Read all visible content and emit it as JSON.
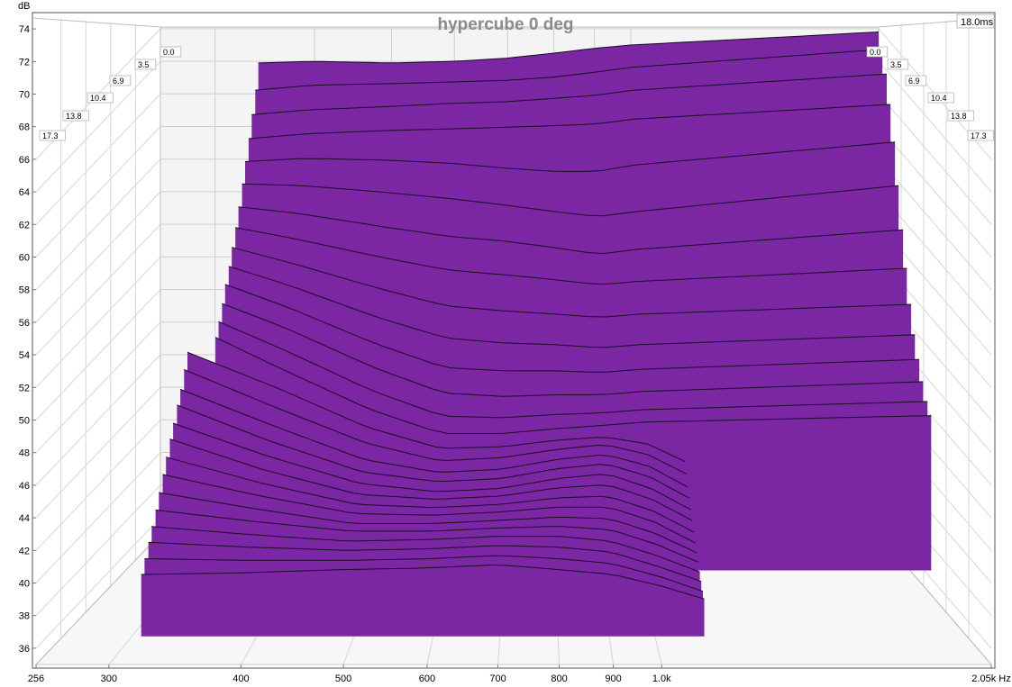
{
  "chart_data": {
    "type": "waterfall-3d",
    "title": "hypercube 0 deg",
    "y_unit_label": "dB",
    "x_unit_label": "Hz",
    "ylim": [
      35,
      75
    ],
    "y_ticks": [
      "74",
      "72",
      "70",
      "68",
      "66",
      "64",
      "62",
      "60",
      "58",
      "56",
      "54",
      "52",
      "50",
      "48",
      "46",
      "44",
      "42",
      "40",
      "38",
      "36"
    ],
    "x_scale": "log",
    "xlim": [
      256,
      2050
    ],
    "x_ticks": [
      {
        "value": 256,
        "label": "256"
      },
      {
        "value": 300,
        "label": "300"
      },
      {
        "value": 400,
        "label": "400"
      },
      {
        "value": 500,
        "label": "500"
      },
      {
        "value": 600,
        "label": "600"
      },
      {
        "value": 700,
        "label": "700"
      },
      {
        "value": 800,
        "label": "800"
      },
      {
        "value": 900,
        "label": "900"
      },
      {
        "value": 1000,
        "label": "1.0k"
      },
      {
        "value": 2050,
        "label": "2.05k Hz"
      }
    ],
    "time_unit": "ms",
    "time_max_label": "18.0ms",
    "time_labels_left": [
      "0.0",
      "3.5",
      "6.9",
      "10.4",
      "13.8",
      "17.3"
    ],
    "time_labels_right": [
      "0.0",
      "3.5",
      "6.9",
      "10.4",
      "13.8",
      "17.3"
    ],
    "fill_color": "#7b27a3",
    "grid": true,
    "slices": [
      {
        "t": 0.0,
        "f": [
          340,
          400,
          500,
          600,
          700,
          800,
          900,
          1000,
          2050
        ],
        "db": [
          63.9,
          64.0,
          63.9,
          64.0,
          64.2,
          64.5,
          64.8,
          65.0,
          65.8
        ]
      },
      {
        "t": 0.6,
        "f": [
          340,
          400,
          500,
          600,
          700,
          800,
          900,
          1000,
          2050
        ],
        "db": [
          62.5,
          62.8,
          62.9,
          63.0,
          63.1,
          63.3,
          63.6,
          63.9,
          65.0
        ]
      },
      {
        "t": 1.3,
        "f": [
          340,
          400,
          500,
          600,
          700,
          800,
          900,
          1000,
          2050
        ],
        "db": [
          61.3,
          61.6,
          61.8,
          62.0,
          62.1,
          62.3,
          62.5,
          62.8,
          63.8
        ]
      },
      {
        "t": 1.9,
        "f": [
          340,
          400,
          500,
          600,
          700,
          800,
          900,
          1000,
          2050
        ],
        "db": [
          60.1,
          60.4,
          60.6,
          60.7,
          60.8,
          60.9,
          61.0,
          61.3,
          62.2
        ]
      },
      {
        "t": 2.6,
        "f": [
          340,
          400,
          500,
          600,
          700,
          800,
          900,
          1000,
          2050
        ],
        "db": [
          59.0,
          59.2,
          59.1,
          58.9,
          58.6,
          58.4,
          58.4,
          58.8,
          60.2
        ]
      },
      {
        "t": 3.2,
        "f": [
          340,
          400,
          500,
          600,
          700,
          800,
          900,
          1000,
          2050
        ],
        "db": [
          57.9,
          57.8,
          57.4,
          57.0,
          56.6,
          56.2,
          55.9,
          56.2,
          57.8
        ]
      },
      {
        "t": 3.9,
        "f": [
          340,
          400,
          500,
          600,
          700,
          800,
          900,
          1000,
          2050
        ],
        "db": [
          56.8,
          56.4,
          55.6,
          55.0,
          54.7,
          54.3,
          53.9,
          54.2,
          55.4
        ]
      },
      {
        "t": 4.5,
        "f": [
          340,
          400,
          500,
          600,
          700,
          800,
          900,
          1000,
          2050
        ],
        "db": [
          55.8,
          55.1,
          54.0,
          53.2,
          52.9,
          52.6,
          52.3,
          52.5,
          53.3
        ]
      },
      {
        "t": 5.2,
        "f": [
          340,
          400,
          500,
          600,
          700,
          800,
          900,
          1000,
          2050
        ],
        "db": [
          54.9,
          53.9,
          52.4,
          51.3,
          51.0,
          50.8,
          50.6,
          50.8,
          51.4
        ]
      },
      {
        "t": 5.8,
        "f": [
          340,
          400,
          500,
          600,
          700,
          800,
          900,
          1000,
          2050
        ],
        "db": [
          54.0,
          52.8,
          50.9,
          49.6,
          49.3,
          49.2,
          49.0,
          49.2,
          49.8
        ]
      },
      {
        "t": 6.5,
        "f": [
          340,
          400,
          500,
          600,
          700,
          800,
          900,
          1000,
          2050
        ],
        "db": [
          53.2,
          51.8,
          49.6,
          48.1,
          47.9,
          47.9,
          47.8,
          48.0,
          48.6
        ]
      },
      {
        "t": 7.1,
        "f": [
          340,
          400,
          500,
          600,
          700,
          800,
          900,
          1000,
          2050
        ],
        "db": [
          52.3,
          50.8,
          48.4,
          46.8,
          46.6,
          46.7,
          46.7,
          46.9,
          47.5
        ]
      },
      {
        "t": 7.8,
        "f": [
          340,
          400,
          500,
          600,
          700,
          800,
          900,
          1000,
          2050
        ],
        "db": [
          51.5,
          49.8,
          47.3,
          45.7,
          45.6,
          45.8,
          45.9,
          46.1,
          46.6
        ]
      },
      {
        "t": 8.4,
        "f": [
          340,
          400,
          500,
          600,
          700,
          800,
          900,
          1000,
          2050
        ],
        "db": [
          50.8,
          48.9,
          46.4,
          44.9,
          44.9,
          45.2,
          45.4,
          45.6,
          46.0
        ]
      },
      {
        "t": 9.1,
        "f": [
          320,
          400,
          500,
          600,
          700,
          800,
          900,
          1000,
          1100
        ],
        "db": [
          50.2,
          48.0,
          45.6,
          44.3,
          44.4,
          44.8,
          45.0,
          44.6,
          43.5
        ]
      },
      {
        "t": 9.7,
        "f": [
          320,
          400,
          500,
          600,
          700,
          800,
          900,
          1000,
          1100
        ],
        "db": [
          49.4,
          47.1,
          44.9,
          43.8,
          44.0,
          44.5,
          44.8,
          44.2,
          43.0
        ]
      },
      {
        "t": 10.4,
        "f": [
          320,
          400,
          500,
          600,
          700,
          800,
          900,
          1000,
          1100
        ],
        "db": [
          48.5,
          46.3,
          44.2,
          43.4,
          43.6,
          44.2,
          44.5,
          43.8,
          42.5
        ]
      },
      {
        "t": 11.0,
        "f": [
          320,
          400,
          500,
          600,
          700,
          800,
          900,
          1000,
          1100
        ],
        "db": [
          47.8,
          45.6,
          43.7,
          43.1,
          43.3,
          43.9,
          44.2,
          43.4,
          42.1
        ]
      },
      {
        "t": 11.7,
        "f": [
          320,
          400,
          500,
          600,
          700,
          800,
          900,
          1000,
          1100
        ],
        "db": [
          47.0,
          45.0,
          43.3,
          42.8,
          43.0,
          43.6,
          43.9,
          43.0,
          41.7
        ]
      },
      {
        "t": 12.3,
        "f": [
          320,
          400,
          500,
          600,
          700,
          800,
          900,
          1000,
          1100
        ],
        "db": [
          46.3,
          44.4,
          42.9,
          42.6,
          42.8,
          43.3,
          43.5,
          42.6,
          41.3
        ]
      },
      {
        "t": 13.0,
        "f": [
          320,
          400,
          500,
          600,
          700,
          800,
          900,
          1000,
          1100
        ],
        "db": [
          45.5,
          43.9,
          42.6,
          42.4,
          42.6,
          43.0,
          43.1,
          42.2,
          40.9
        ]
      },
      {
        "t": 13.6,
        "f": [
          320,
          400,
          500,
          600,
          700,
          800,
          900,
          1000,
          1100
        ],
        "db": [
          44.7,
          43.4,
          42.3,
          42.2,
          42.4,
          42.7,
          42.7,
          41.8,
          40.5
        ]
      },
      {
        "t": 14.3,
        "f": [
          320,
          400,
          500,
          600,
          700,
          800,
          900,
          1000,
          1100
        ],
        "db": [
          43.9,
          42.9,
          42.0,
          42.0,
          42.2,
          42.4,
          42.3,
          41.4,
          40.2
        ]
      },
      {
        "t": 14.9,
        "f": [
          320,
          400,
          500,
          600,
          700,
          800,
          900,
          1000,
          1100
        ],
        "db": [
          43.1,
          42.4,
          41.8,
          41.8,
          42.0,
          42.1,
          41.9,
          41.0,
          39.9
        ]
      },
      {
        "t": 15.6,
        "f": [
          320,
          400,
          500,
          600,
          700,
          800,
          900,
          1000,
          1100
        ],
        "db": [
          42.4,
          41.9,
          41.5,
          41.6,
          41.8,
          41.8,
          41.5,
          40.6,
          39.6
        ]
      },
      {
        "t": 16.2,
        "f": [
          320,
          400,
          500,
          600,
          700,
          800,
          900,
          1000,
          1100
        ],
        "db": [
          41.7,
          41.4,
          41.2,
          41.3,
          41.5,
          41.4,
          41.1,
          40.2,
          39.3
        ]
      },
      {
        "t": 16.9,
        "f": [
          320,
          400,
          500,
          600,
          700,
          800,
          900,
          1000,
          1100
        ],
        "db": [
          41.0,
          40.9,
          40.9,
          41.0,
          41.2,
          41.0,
          40.7,
          39.9,
          39.0
        ]
      },
      {
        "t": 17.5,
        "f": [
          320,
          400,
          500,
          600,
          700,
          800,
          900,
          1000,
          1100
        ],
        "db": [
          40.3,
          40.4,
          40.6,
          40.7,
          40.9,
          40.6,
          40.3,
          39.6,
          38.8
        ]
      }
    ]
  }
}
